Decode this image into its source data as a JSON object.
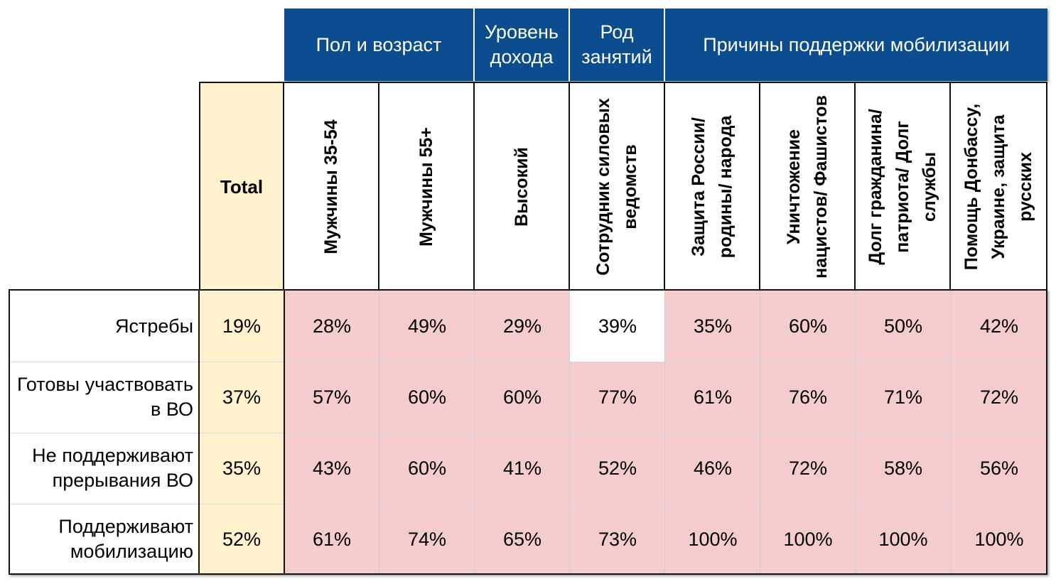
{
  "chart_data": {
    "type": "table",
    "column_groups": [
      {
        "label": "Пол и возраст"
      },
      {
        "label": "Уровень\nдохода"
      },
      {
        "label": "Род\nзанятий"
      },
      {
        "label": "Причины поддержки мобилизации"
      }
    ],
    "total_header": "Total",
    "columns": [
      "Мужчины 35-54",
      "Мужчины 55+",
      "Высокий",
      "Сотрудник силовых ведомств",
      "Защита России/ родины/ народа",
      "Уничтожение нацистов/ Фашистов",
      "Долг гражданина/ патриота/ Долг службы",
      "Помощь Донбассу, Украине, защита русских"
    ],
    "rows": [
      {
        "label": "Ястребы",
        "total": "19%",
        "values": [
          "28%",
          "49%",
          "29%",
          "39%",
          "35%",
          "60%",
          "50%",
          "42%"
        ]
      },
      {
        "label": "Готовы участвовать в ВО",
        "total": "37%",
        "values": [
          "57%",
          "60%",
          "60%",
          "77%",
          "61%",
          "76%",
          "71%",
          "72%"
        ]
      },
      {
        "label": "Не поддерживают прерывания ВО",
        "total": "35%",
        "values": [
          "43%",
          "60%",
          "41%",
          "52%",
          "46%",
          "72%",
          "58%",
          "56%"
        ]
      },
      {
        "label": "Поддерживают мобилизацию",
        "total": "52%",
        "values": [
          "61%",
          "74%",
          "65%",
          "73%",
          "100%",
          "100%",
          "100%",
          "100%"
        ]
      }
    ],
    "highlight_color": "#f4cccc",
    "total_color": "#fff2cc",
    "header_color": "#0b4d8f",
    "unhighlighted_cells": [
      [
        0,
        3
      ]
    ]
  }
}
